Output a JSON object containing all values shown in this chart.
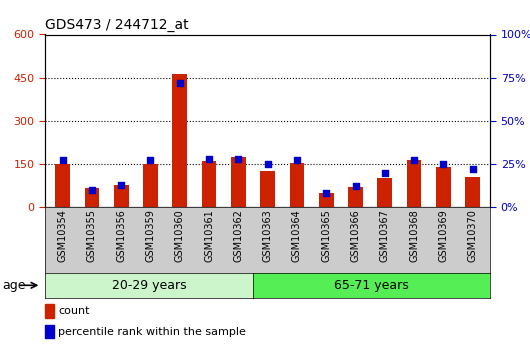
{
  "title": "GDS473 / 244712_at",
  "categories": [
    "GSM10354",
    "GSM10355",
    "GSM10356",
    "GSM10359",
    "GSM10360",
    "GSM10361",
    "GSM10362",
    "GSM10363",
    "GSM10364",
    "GSM10365",
    "GSM10366",
    "GSM10367",
    "GSM10368",
    "GSM10369",
    "GSM10370"
  ],
  "count_values": [
    148,
    65,
    75,
    148,
    462,
    160,
    175,
    125,
    153,
    48,
    70,
    100,
    165,
    140,
    105
  ],
  "percentile_values": [
    27,
    10,
    13,
    27,
    72,
    28,
    28,
    25,
    27,
    8,
    12,
    20,
    27,
    25,
    22
  ],
  "group1_label": "20-29 years",
  "group2_label": "65-71 years",
  "group1_count": 7,
  "group2_count": 8,
  "left_ylim": [
    0,
    600
  ],
  "right_ylim": [
    0,
    100
  ],
  "left_yticks": [
    0,
    150,
    300,
    450,
    600
  ],
  "right_yticks": [
    0,
    25,
    50,
    75,
    100
  ],
  "bar_color": "#cc2200",
  "dot_color": "#0000cc",
  "group1_bg": "#ccf5cc",
  "group2_bg": "#55ee55",
  "xtick_bg": "#cccccc",
  "plot_bg": "#ffffff",
  "left_tick_color": "#cc2200",
  "right_tick_color": "#0000cc",
  "legend_count_color": "#cc2200",
  "legend_pct_color": "#0000cc",
  "age_label": "age",
  "bar_width": 0.5,
  "dot_size": 25,
  "grid_linestyle": ":",
  "grid_color": "#000000",
  "grid_linewidth": 0.8,
  "title_fontsize": 10,
  "tick_label_fontsize": 7,
  "group_label_fontsize": 9,
  "legend_fontsize": 8,
  "age_fontsize": 9
}
